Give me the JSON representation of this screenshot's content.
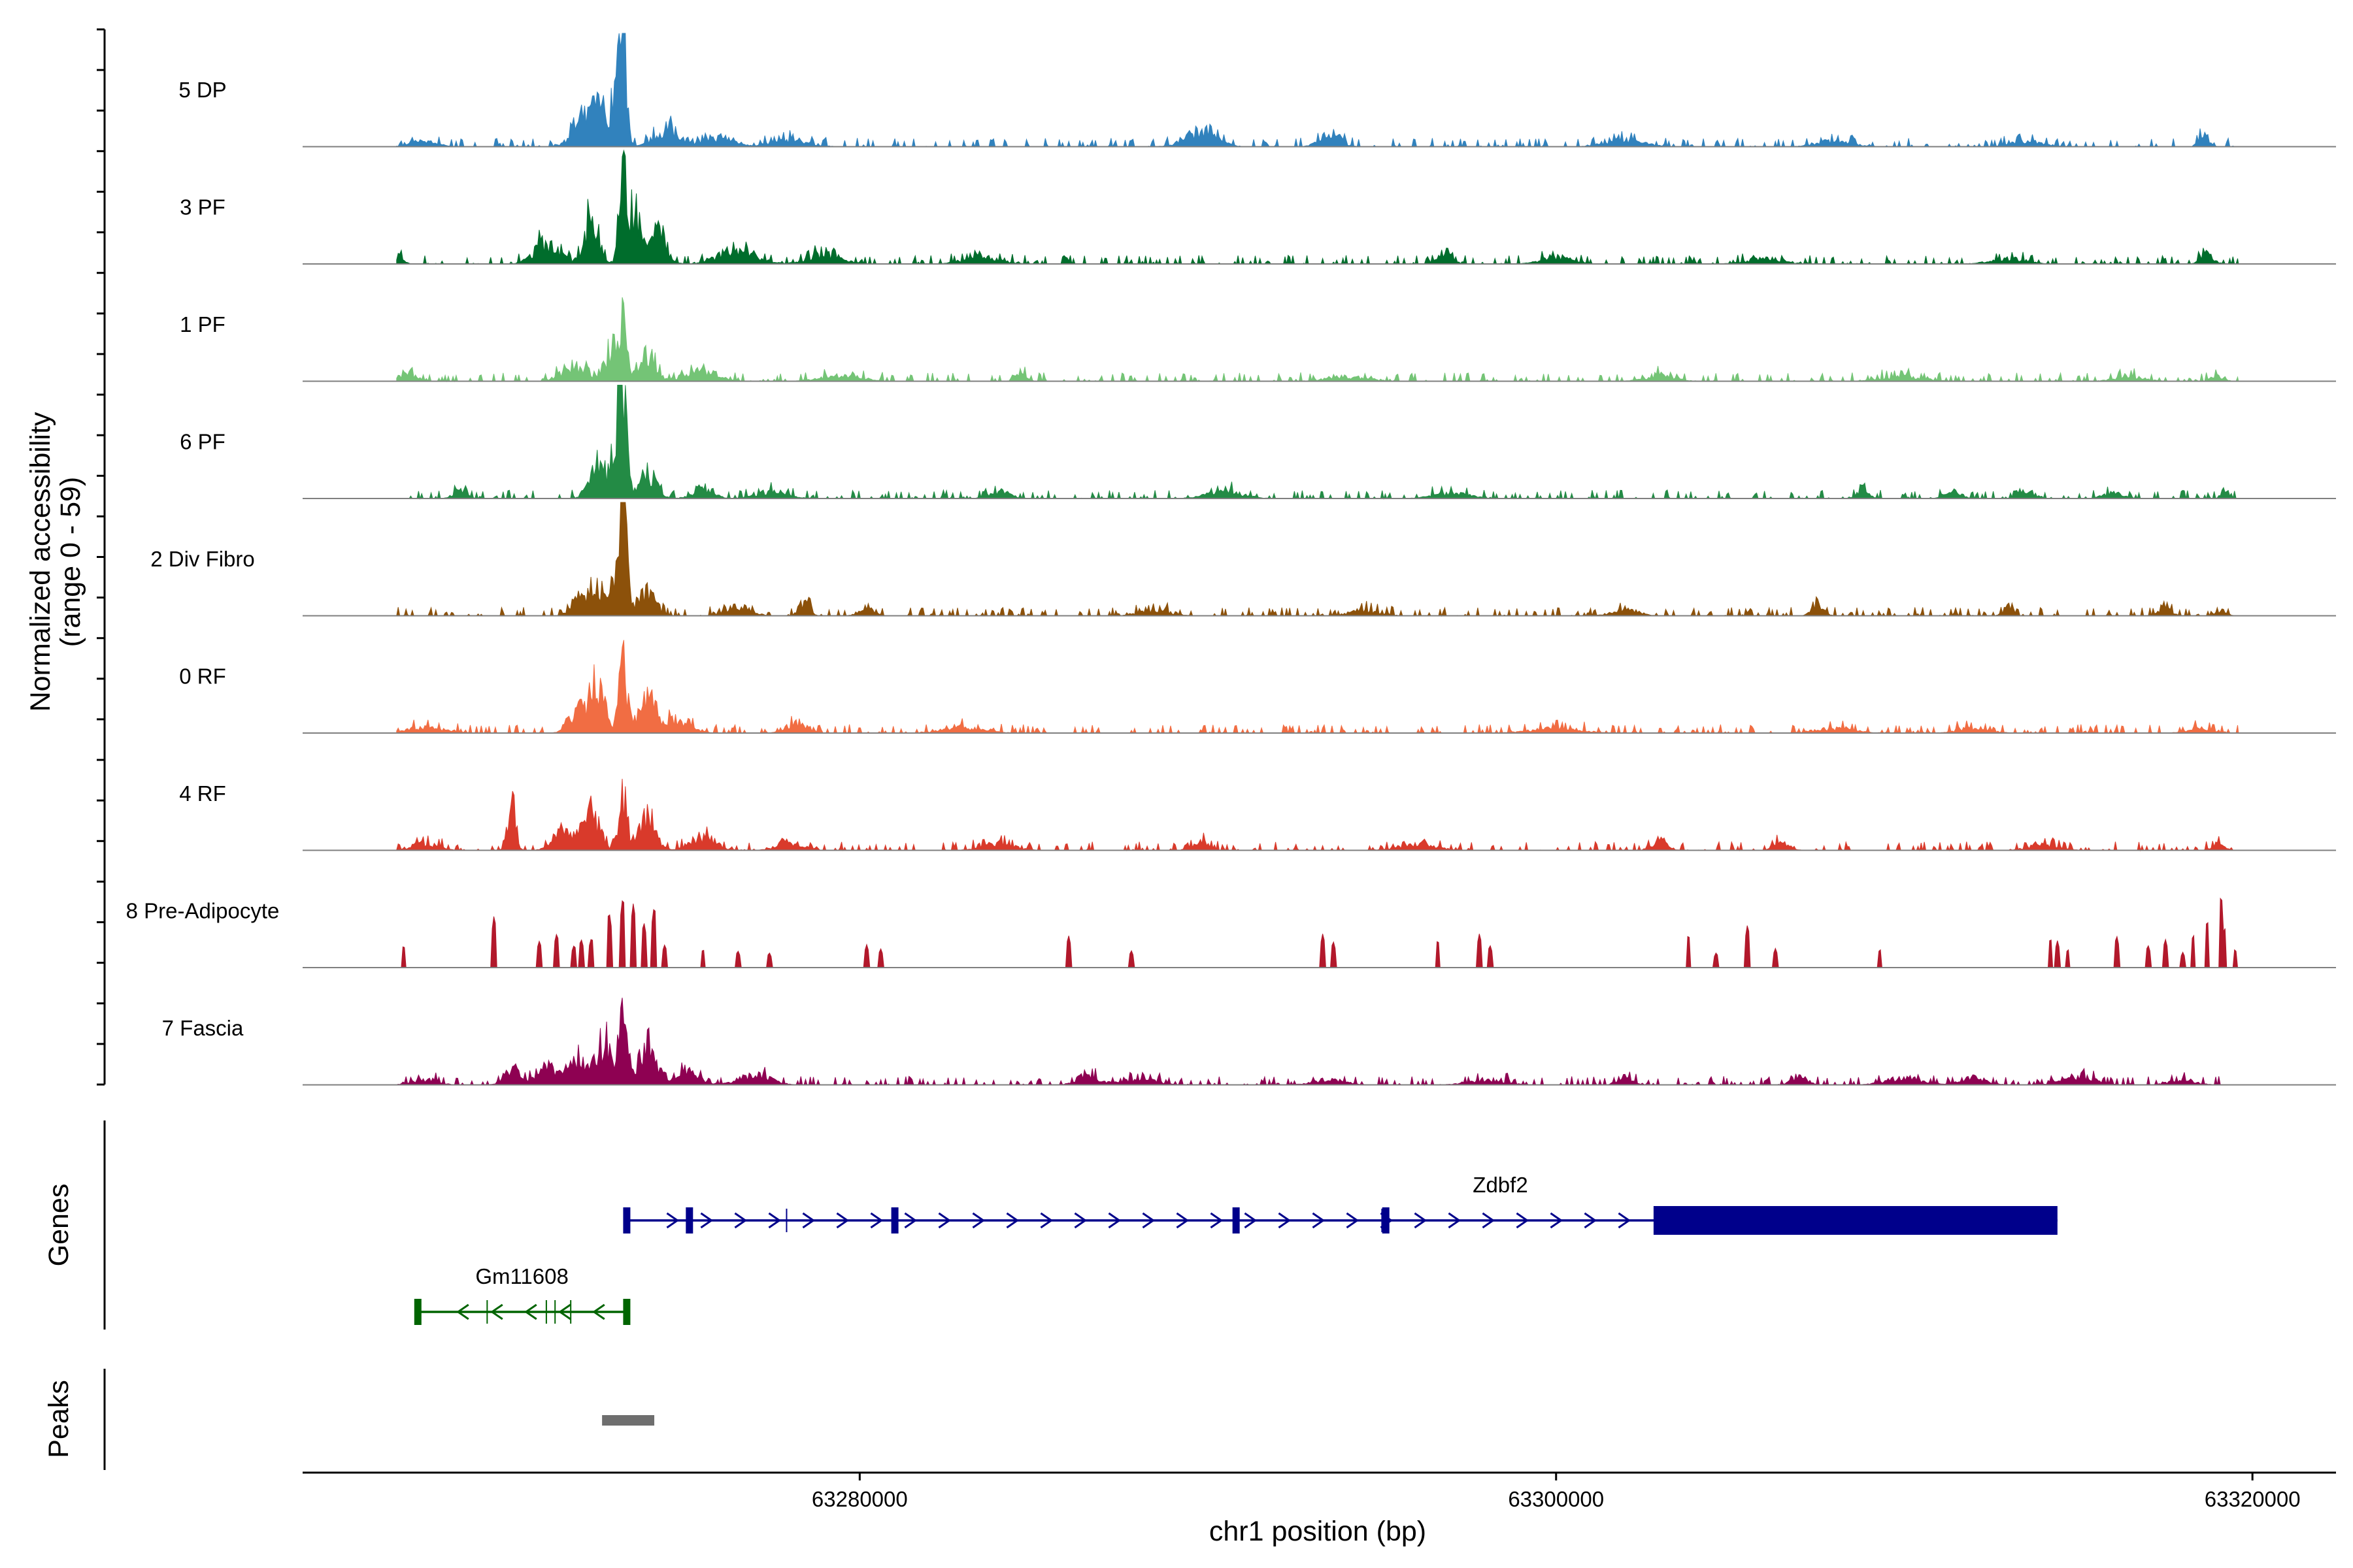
{
  "chart_data": {
    "type": "area",
    "title": "",
    "ylabel_line1": "Normalized accessibility",
    "ylabel_line2": "(range 0 - 59)",
    "y_range": [
      0,
      59
    ],
    "xlabel": "chr1 position (bp)",
    "xlim": [
      63264000,
      63322400
    ],
    "x_ticks": [
      63280000,
      63300000,
      63320000
    ],
    "x_tick_labels": [
      "63280000",
      "63300000",
      "63320000"
    ],
    "signal_start": 63266700,
    "signal_end": 63319600,
    "tracks": [
      {
        "name": "5 DP",
        "color": "#3182BD",
        "peaks": [
          [
            63273200,
            59,
            140
          ],
          [
            63273000,
            28,
            260
          ],
          [
            63272500,
            22,
            250
          ],
          [
            63272000,
            14,
            400
          ],
          [
            63274500,
            10,
            500
          ],
          [
            63276000,
            5,
            600
          ],
          [
            63278000,
            4,
            700
          ],
          [
            63289800,
            9,
            600
          ],
          [
            63293500,
            7,
            400
          ],
          [
            63318600,
            6,
            200
          ],
          [
            63267500,
            3,
            500
          ],
          [
            63302000,
            4,
            700
          ],
          [
            63308000,
            3,
            700
          ],
          [
            63313500,
            3,
            600
          ]
        ]
      },
      {
        "name": "3 PF",
        "color": "#006D2C",
        "peaks": [
          [
            63273200,
            46,
            150
          ],
          [
            63273500,
            30,
            260
          ],
          [
            63272300,
            26,
            300
          ],
          [
            63274200,
            18,
            350
          ],
          [
            63271000,
            12,
            500
          ],
          [
            63276500,
            9,
            700
          ],
          [
            63279000,
            5,
            700
          ],
          [
            63283500,
            4,
            700
          ],
          [
            63296800,
            7,
            250
          ],
          [
            63300000,
            4,
            600
          ],
          [
            63306000,
            3,
            700
          ],
          [
            63318700,
            5,
            250
          ],
          [
            63266800,
            6,
            150
          ],
          [
            63313000,
            3,
            700
          ]
        ]
      },
      {
        "name": "1 PF",
        "color": "#74C476",
        "peaks": [
          [
            63273200,
            33,
            160
          ],
          [
            63272900,
            18,
            280
          ],
          [
            63273900,
            14,
            350
          ],
          [
            63271800,
            9,
            500
          ],
          [
            63275500,
            6,
            600
          ],
          [
            63284600,
            6,
            200
          ],
          [
            63267000,
            4,
            400
          ],
          [
            63279500,
            3,
            800
          ],
          [
            63294000,
            2.5,
            800
          ],
          [
            63303000,
            3,
            600
          ],
          [
            63310000,
            2.5,
            800
          ],
          [
            63316500,
            2.5,
            600
          ],
          [
            63319000,
            3,
            250
          ]
        ]
      },
      {
        "name": "6 PF",
        "color": "#238B45",
        "peaks": [
          [
            63273200,
            58,
            150
          ],
          [
            63273000,
            28,
            260
          ],
          [
            63272400,
            18,
            300
          ],
          [
            63273900,
            14,
            350
          ],
          [
            63275500,
            6,
            400
          ],
          [
            63268500,
            5,
            250
          ],
          [
            63277500,
            4,
            600
          ],
          [
            63284000,
            4,
            400
          ],
          [
            63290500,
            4,
            700
          ],
          [
            63297000,
            3,
            700
          ],
          [
            63308800,
            6,
            220
          ],
          [
            63311400,
            4,
            300
          ],
          [
            63313500,
            5,
            300
          ],
          [
            63316000,
            3,
            400
          ],
          [
            63319200,
            4,
            150
          ]
        ]
      },
      {
        "name": "2 Div Fibro",
        "color": "#8C510A",
        "peaks": [
          [
            63273200,
            58,
            150
          ],
          [
            63273100,
            24,
            300
          ],
          [
            63272400,
            16,
            320
          ],
          [
            63273900,
            14,
            340
          ],
          [
            63271900,
            10,
            300
          ],
          [
            63278400,
            8,
            200
          ],
          [
            63276500,
            5,
            500
          ],
          [
            63280200,
            5,
            300
          ],
          [
            63288500,
            3,
            600
          ],
          [
            63294500,
            3,
            600
          ],
          [
            63302000,
            4,
            500
          ],
          [
            63307500,
            5,
            250
          ],
          [
            63313000,
            5,
            200
          ],
          [
            63317500,
            5,
            250
          ],
          [
            63319100,
            3,
            200
          ]
        ]
      },
      {
        "name": "0 RF",
        "color": "#F16D43",
        "peaks": [
          [
            63273200,
            44,
            160
          ],
          [
            63272500,
            25,
            280
          ],
          [
            63273900,
            22,
            330
          ],
          [
            63272000,
            15,
            400
          ],
          [
            63274800,
            8,
            500
          ],
          [
            63278200,
            6,
            400
          ],
          [
            63267500,
            3,
            800
          ],
          [
            63283000,
            3,
            800
          ],
          [
            63300000,
            2.5,
            1000
          ],
          [
            63308000,
            2.5,
            800
          ],
          [
            63312000,
            3,
            600
          ],
          [
            63318500,
            2.5,
            500
          ]
        ]
      },
      {
        "name": "4 RF",
        "color": "#D93A2B",
        "peaks": [
          [
            63270000,
            32,
            150
          ],
          [
            63273200,
            34,
            170
          ],
          [
            63272300,
            22,
            300
          ],
          [
            63273900,
            18,
            330
          ],
          [
            63271500,
            12,
            400
          ],
          [
            63275500,
            8,
            500
          ],
          [
            63278000,
            5,
            500
          ],
          [
            63267500,
            4,
            500
          ],
          [
            63284000,
            4,
            600
          ],
          [
            63289800,
            5,
            300
          ],
          [
            63303000,
            5,
            300
          ],
          [
            63306500,
            4,
            300
          ],
          [
            63296000,
            3,
            800
          ],
          [
            63314000,
            3,
            600
          ],
          [
            63319000,
            3,
            250
          ]
        ]
      },
      {
        "name": "8 Pre-Adipocyte",
        "color": "#B2182B",
        "peaks": [
          [
            63273200,
            38,
            70
          ],
          [
            63273500,
            34,
            70
          ],
          [
            63274100,
            33,
            70
          ],
          [
            63272800,
            30,
            70
          ],
          [
            63273800,
            24,
            70
          ],
          [
            63271300,
            18,
            70
          ],
          [
            63272300,
            16,
            70
          ],
          [
            63272000,
            15,
            70
          ],
          [
            63270800,
            14,
            70
          ],
          [
            63269500,
            28,
            60
          ],
          [
            63266900,
            12,
            60
          ],
          [
            63271800,
            12,
            70
          ],
          [
            63274400,
            12,
            70
          ],
          [
            63275500,
            10,
            60
          ],
          [
            63276500,
            9,
            60
          ],
          [
            63277400,
            8,
            60
          ],
          [
            63280200,
            12,
            60
          ],
          [
            63280600,
            10,
            60
          ],
          [
            63286000,
            17,
            60
          ],
          [
            63287800,
            9,
            60
          ],
          [
            63293300,
            18,
            60
          ],
          [
            63293600,
            14,
            60
          ],
          [
            63296600,
            15,
            60
          ],
          [
            63297800,
            18,
            60
          ],
          [
            63298100,
            12,
            60
          ],
          [
            63303800,
            18,
            60
          ],
          [
            63304600,
            8,
            60
          ],
          [
            63305500,
            23,
            60
          ],
          [
            63306300,
            10,
            60
          ],
          [
            63309300,
            10,
            60
          ],
          [
            63314200,
            16,
            60
          ],
          [
            63314400,
            14,
            60
          ],
          [
            63314700,
            10,
            60
          ],
          [
            63316100,
            17,
            60
          ],
          [
            63317000,
            12,
            60
          ],
          [
            63317500,
            15,
            60
          ],
          [
            63318000,
            8,
            60
          ],
          [
            63318300,
            18,
            60
          ],
          [
            63318700,
            26,
            60
          ],
          [
            63319100,
            40,
            60
          ],
          [
            63319200,
            22,
            60
          ],
          [
            63319500,
            10,
            60
          ]
        ]
      },
      {
        "name": "7 Fascia",
        "color": "#8E0152",
        "peaks": [
          [
            63273200,
            34,
            170
          ],
          [
            63272700,
            22,
            300
          ],
          [
            63273900,
            22,
            320
          ],
          [
            63272000,
            16,
            400
          ],
          [
            63271000,
            12,
            400
          ],
          [
            63270000,
            10,
            300
          ],
          [
            63275000,
            8,
            500
          ],
          [
            63277000,
            6,
            600
          ],
          [
            63286500,
            5,
            400
          ],
          [
            63288000,
            3,
            800
          ],
          [
            63293500,
            3,
            600
          ],
          [
            63298000,
            3,
            700
          ],
          [
            63302000,
            5,
            300
          ],
          [
            63307000,
            5,
            300
          ],
          [
            63310000,
            4,
            700
          ],
          [
            63312000,
            4,
            500
          ],
          [
            63315000,
            5,
            600
          ],
          [
            63318000,
            3,
            500
          ],
          [
            63267500,
            3,
            500
          ]
        ]
      }
    ],
    "genes_label": "Genes",
    "genes": [
      {
        "name": "Zdbf2",
        "strand": "+",
        "color": "#00008B",
        "start": 63273300,
        "end": 63314400,
        "thick_start": 63302800,
        "thick_end": 63314400,
        "exons": [
          63273300,
          63275100,
          63281000,
          63290800,
          63295100
        ],
        "minor_marks": [
          63277900,
          63295000
        ]
      },
      {
        "name": "Gm11608",
        "strand": "-",
        "color": "#006400",
        "start": 63267300,
        "end": 63273400,
        "exons": [
          63267300,
          63273300
        ],
        "minor_marks": [
          63269300,
          63271000,
          63271250,
          63271700
        ]
      }
    ],
    "peaks_label": "Peaks",
    "peaks_regions": [
      [
        63272600,
        63274100
      ]
    ],
    "peaks_color": "#6E6E6E"
  }
}
